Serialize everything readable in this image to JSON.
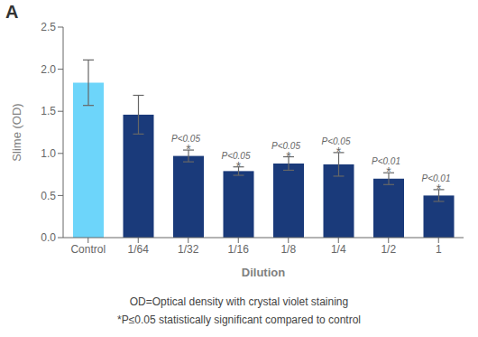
{
  "chart_data": {
    "type": "bar",
    "categories": [
      "Control",
      "1/64",
      "1/32",
      "1/16",
      "1/8",
      "1/4",
      "1/2",
      "1"
    ],
    "values": [
      1.84,
      1.46,
      0.97,
      0.79,
      0.88,
      0.87,
      0.7,
      0.5
    ],
    "errors": [
      0.27,
      0.23,
      0.07,
      0.05,
      0.08,
      0.14,
      0.07,
      0.07
    ],
    "colors": [
      "#6DD5FA",
      "#1A3A7A",
      "#1A3A7A",
      "#1A3A7A",
      "#1A3A7A",
      "#1A3A7A",
      "#1A3A7A",
      "#1A3A7A"
    ],
    "xlabel": "Dilution",
    "ylabel": "Slime (OD)",
    "ylim": [
      0,
      2.5
    ],
    "yticks": [
      {
        "value": 0,
        "label": "0.0"
      },
      0.5,
      {
        "value": 1,
        "label": "1.0"
      },
      1.5,
      {
        "value": 2,
        "label": "2.0"
      },
      2.5
    ],
    "annotations": [
      {
        "category": "1/32",
        "text": "P<0.05",
        "mark": "*"
      },
      {
        "category": "1/16",
        "text": "P<0.05",
        "mark": "*"
      },
      {
        "category": "1/8",
        "text": "P<0.05",
        "mark": "*"
      },
      {
        "category": "1/4",
        "text": "P<0.05",
        "mark": "*"
      },
      {
        "category": "1/2",
        "text": "P<0.01",
        "mark": "*"
      },
      {
        "category": "1",
        "text": "P<0.01",
        "mark": "*"
      }
    ],
    "panel_label": "A",
    "footnotes": [
      "OD=Optical density with crystal violet staining",
      "*P≤0.05 statistically significant compared to control"
    ],
    "grid": false
  }
}
